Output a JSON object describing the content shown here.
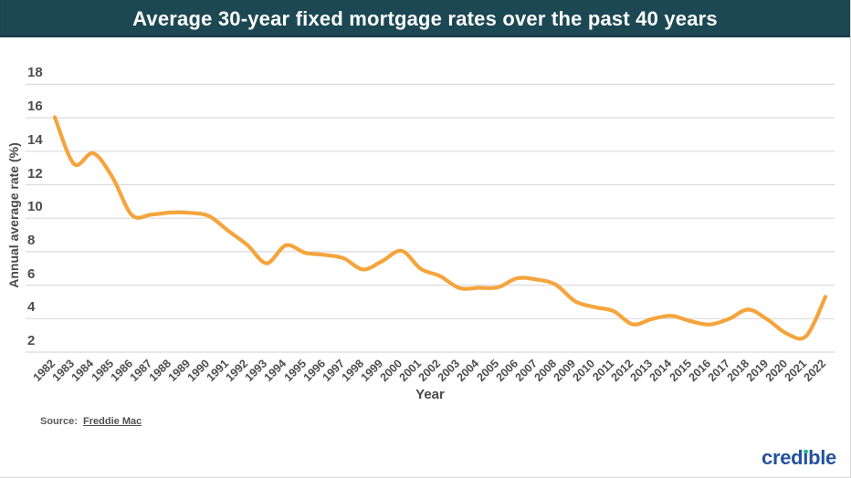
{
  "header": {
    "title": "Average 30-year fixed mortgage rates over the past 40 years",
    "background_color": "#1C4854",
    "text_color": "#FFFFFF"
  },
  "chart_data": {
    "type": "line",
    "title": "Average 30-year fixed mortgage rates over the past 40 years",
    "xlabel": "Year",
    "ylabel": "Annual average rate (%)",
    "x": [
      1982,
      1983,
      1984,
      1985,
      1986,
      1987,
      1988,
      1989,
      1990,
      1991,
      1992,
      1993,
      1994,
      1995,
      1996,
      1997,
      1998,
      1999,
      2000,
      2001,
      2002,
      2003,
      2004,
      2005,
      2006,
      2007,
      2008,
      2009,
      2010,
      2011,
      2012,
      2013,
      2014,
      2015,
      2016,
      2017,
      2018,
      2019,
      2020,
      2021,
      2022
    ],
    "series": [
      {
        "name": "Average 30-year fixed mortgage rate (%)",
        "values": [
          16.04,
          13.24,
          13.88,
          12.43,
          10.19,
          10.21,
          10.34,
          10.32,
          10.13,
          9.25,
          8.39,
          7.31,
          8.38,
          7.93,
          7.81,
          7.6,
          6.94,
          7.44,
          8.05,
          6.97,
          6.54,
          5.83,
          5.84,
          5.87,
          6.41,
          6.34,
          6.03,
          5.04,
          4.69,
          4.45,
          3.66,
          3.98,
          4.17,
          3.85,
          3.65,
          3.99,
          4.54,
          3.94,
          3.1,
          2.96,
          5.3
        ]
      }
    ],
    "yticks": [
      2,
      4,
      6,
      8,
      10,
      12,
      14,
      16,
      18
    ],
    "ylim": [
      2,
      18
    ],
    "xlim": [
      1982,
      2022
    ],
    "grid": true,
    "legend": false,
    "line_color": "#F5A43C",
    "grid_color": "#DBDBDB",
    "tick_color": "#4D4D4D"
  },
  "source": {
    "label": "Source:",
    "link_text": "Freddie Mac"
  },
  "logo": {
    "text": "credible",
    "color": "#24519E",
    "dot_color": "#21BD84",
    "part_pre": "cred",
    "part_i": "ı",
    "part_post": "ble"
  }
}
